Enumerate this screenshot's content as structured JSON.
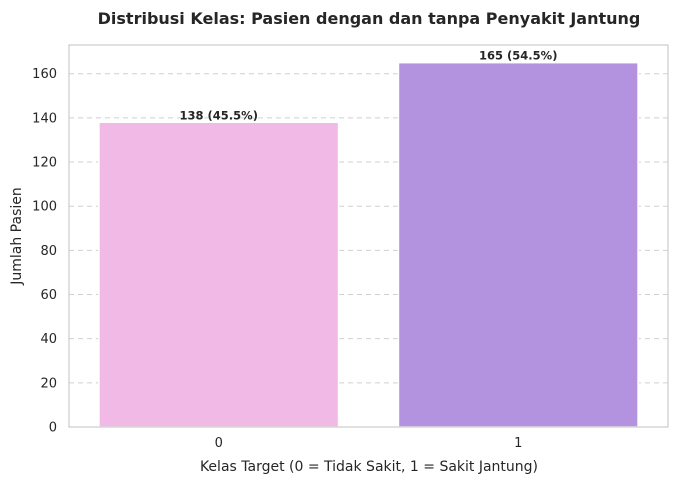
{
  "chart_data": {
    "type": "bar",
    "title": "Distribusi Kelas: Pasien dengan dan tanpa Penyakit Jantung",
    "xlabel": "Kelas Target (0 = Tidak Sakit, 1 = Sakit Jantung)",
    "ylabel": "Jumlah Pasien",
    "categories": [
      "0",
      "1"
    ],
    "values": [
      138,
      165
    ],
    "data_labels": [
      "138 (45.5%)",
      "165 (54.5%)"
    ],
    "colors": [
      "#f0b9e6",
      "#b393df"
    ],
    "ylim": [
      0,
      173
    ],
    "yticks": [
      0,
      20,
      40,
      60,
      80,
      100,
      120,
      140,
      160
    ],
    "grid": "horizontal-dashed",
    "legend": "none"
  }
}
